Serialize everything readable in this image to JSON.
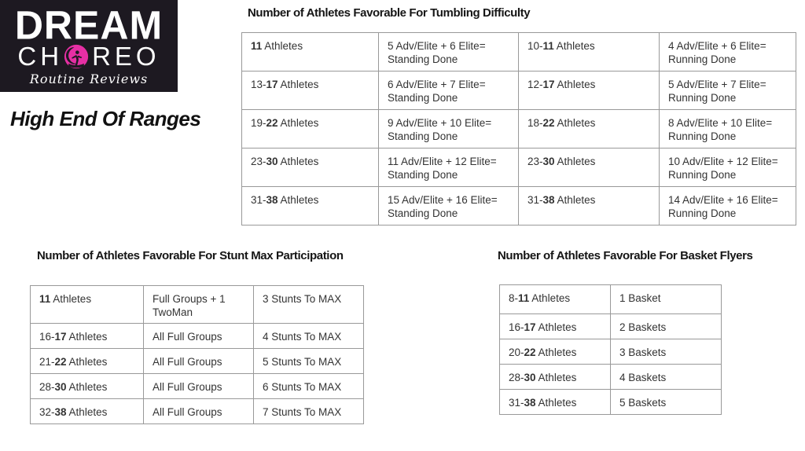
{
  "logo": {
    "word1": "DREAM",
    "word2_left": "CH",
    "word2_right": "REO",
    "tagline": "Routine Reviews",
    "o_icon": "dancer-in-circle-icon",
    "colors": {
      "bg": "#1d1921",
      "pink": "#e62fa4",
      "text": "#ffffff"
    }
  },
  "page_heading": "High End Of Ranges",
  "tumbling_table": {
    "title": "Number of Athletes Favorable For Tumbling Difficulty",
    "rows": [
      [
        [
          [
            {
              "t": "11",
              "b": true
            },
            {
              "t": " Athletes"
            }
          ]
        ],
        [
          [
            {
              "t": "5 Adv/Elite + 6 Elite="
            }
          ],
          [
            {
              "t": "Standing Done"
            }
          ]
        ],
        [
          [
            {
              "t": "10-"
            },
            {
              "t": "11",
              "b": true
            },
            {
              "t": " Athletes"
            }
          ]
        ],
        [
          [
            {
              "t": "4 Adv/Elite + 6 Elite="
            }
          ],
          [
            {
              "t": "Running Done"
            }
          ]
        ]
      ],
      [
        [
          [
            {
              "t": "13-"
            },
            {
              "t": "17",
              "b": true
            },
            {
              "t": " Athletes"
            }
          ]
        ],
        [
          [
            {
              "t": "6 Adv/Elite + 7 Elite="
            }
          ],
          [
            {
              "t": "Standing Done"
            }
          ]
        ],
        [
          [
            {
              "t": "12-"
            },
            {
              "t": "17",
              "b": true
            },
            {
              "t": " Athletes"
            }
          ]
        ],
        [
          [
            {
              "t": "5 Adv/Elite + 7 Elite="
            }
          ],
          [
            {
              "t": "Running Done"
            }
          ]
        ]
      ],
      [
        [
          [
            {
              "t": "19-"
            },
            {
              "t": "22",
              "b": true
            },
            {
              "t": " Athletes"
            }
          ]
        ],
        [
          [
            {
              "t": "9 Adv/Elite + 10 Elite="
            }
          ],
          [
            {
              "t": "Standing Done"
            }
          ]
        ],
        [
          [
            {
              "t": "18-"
            },
            {
              "t": "22",
              "b": true
            },
            {
              "t": " Athletes"
            }
          ]
        ],
        [
          [
            {
              "t": "8 Adv/Elite + 10 Elite="
            }
          ],
          [
            {
              "t": "Running Done"
            }
          ]
        ]
      ],
      [
        [
          [
            {
              "t": "23-"
            },
            {
              "t": "30",
              "b": true
            },
            {
              "t": " Athletes"
            }
          ]
        ],
        [
          [
            {
              "t": "11 Adv/Elite + 12 Elite="
            }
          ],
          [
            {
              "t": "Standing Done"
            }
          ]
        ],
        [
          [
            {
              "t": "23-"
            },
            {
              "t": "30",
              "b": true
            },
            {
              "t": " Athletes"
            }
          ]
        ],
        [
          [
            {
              "t": "10 Adv/Elite + 12 Elite="
            }
          ],
          [
            {
              "t": "Running Done"
            }
          ]
        ]
      ],
      [
        [
          [
            {
              "t": "31-"
            },
            {
              "t": "38",
              "b": true
            },
            {
              "t": " Athletes"
            }
          ]
        ],
        [
          [
            {
              "t": "15 Adv/Elite + 16 Elite="
            }
          ],
          [
            {
              "t": "Standing Done"
            }
          ]
        ],
        [
          [
            {
              "t": "31-"
            },
            {
              "t": "38",
              "b": true
            },
            {
              "t": " Athletes"
            }
          ]
        ],
        [
          [
            {
              "t": "14 Adv/Elite + 16 Elite="
            }
          ],
          [
            {
              "t": "Running Done"
            }
          ]
        ]
      ]
    ]
  },
  "stunt_table": {
    "title": "Number of Athletes Favorable For Stunt Max Participation",
    "rows": [
      [
        [
          [
            {
              "t": "11",
              "b": true
            },
            {
              "t": " Athletes"
            }
          ]
        ],
        [
          [
            {
              "t": "Full Groups + 1"
            }
          ],
          [
            {
              "t": "TwoMan"
            }
          ]
        ],
        [
          [
            {
              "t": "3 Stunts To MAX"
            }
          ]
        ]
      ],
      [
        [
          [
            {
              "t": "16-"
            },
            {
              "t": "17",
              "b": true
            },
            {
              "t": " Athletes"
            }
          ]
        ],
        [
          [
            {
              "t": "All Full Groups"
            }
          ]
        ],
        [
          [
            {
              "t": "4 Stunts To MAX"
            }
          ]
        ]
      ],
      [
        [
          [
            {
              "t": "21-"
            },
            {
              "t": "22",
              "b": true
            },
            {
              "t": " Athletes"
            }
          ]
        ],
        [
          [
            {
              "t": "All Full Groups"
            }
          ]
        ],
        [
          [
            {
              "t": "5 Stunts To MAX"
            }
          ]
        ]
      ],
      [
        [
          [
            {
              "t": "28-"
            },
            {
              "t": "30",
              "b": true
            },
            {
              "t": " Athletes"
            }
          ]
        ],
        [
          [
            {
              "t": "All Full Groups"
            }
          ]
        ],
        [
          [
            {
              "t": "6 Stunts To MAX"
            }
          ]
        ]
      ],
      [
        [
          [
            {
              "t": "32-"
            },
            {
              "t": "38",
              "b": true
            },
            {
              "t": " Athletes"
            }
          ]
        ],
        [
          [
            {
              "t": "All Full Groups"
            }
          ]
        ],
        [
          [
            {
              "t": "7 Stunts To MAX"
            }
          ]
        ]
      ]
    ]
  },
  "basket_table": {
    "title": "Number of Athletes Favorable For Basket Flyers",
    "rows": [
      [
        [
          [
            {
              "t": "8-"
            },
            {
              "t": "11",
              "b": true
            },
            {
              "t": " Athletes"
            }
          ]
        ],
        [
          [
            {
              "t": "1 Basket"
            }
          ]
        ]
      ],
      [
        [
          [
            {
              "t": "16-"
            },
            {
              "t": "17",
              "b": true
            },
            {
              "t": " Athletes"
            }
          ]
        ],
        [
          [
            {
              "t": "2 Baskets"
            }
          ]
        ]
      ],
      [
        [
          [
            {
              "t": "20-"
            },
            {
              "t": "22",
              "b": true
            },
            {
              "t": " Athletes"
            }
          ]
        ],
        [
          [
            {
              "t": "3 Baskets"
            }
          ]
        ]
      ],
      [
        [
          [
            {
              "t": "28-"
            },
            {
              "t": "30",
              "b": true
            },
            {
              "t": " Athletes"
            }
          ]
        ],
        [
          [
            {
              "t": "4 Baskets"
            }
          ]
        ]
      ],
      [
        [
          [
            {
              "t": "31-"
            },
            {
              "t": "38",
              "b": true
            },
            {
              "t": " Athletes"
            }
          ]
        ],
        [
          [
            {
              "t": "5 Baskets"
            }
          ]
        ]
      ]
    ]
  }
}
